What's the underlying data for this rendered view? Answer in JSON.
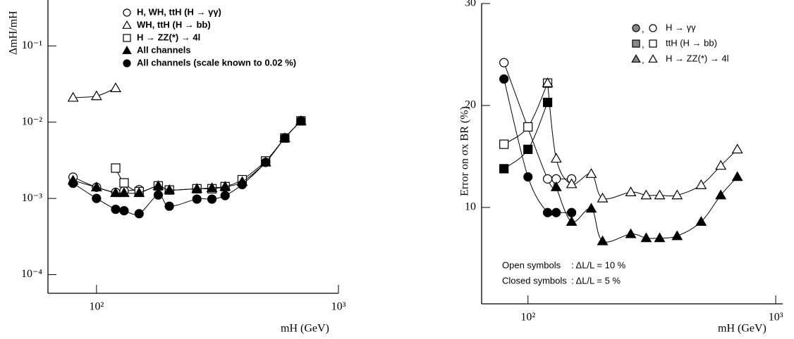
{
  "chart_data": [
    {
      "type": "line",
      "log_x": true,
      "log_y": true,
      "ylabel": "ΔmH/mH",
      "xlabel": "mH (GeV)",
      "xlim": [
        63,
        1000
      ],
      "ylim": [
        5.7e-05,
        0.4
      ],
      "xticks": [
        {
          "value": 100,
          "label": "10²"
        },
        {
          "value": 1000,
          "label": "10³"
        }
      ],
      "yticks": [
        {
          "value": 0.0001,
          "label": "10⁻⁴"
        },
        {
          "value": 0.001,
          "label": "10⁻³"
        },
        {
          "value": 0.01,
          "label": "10⁻²"
        },
        {
          "value": 0.1,
          "label": "10⁻¹"
        }
      ],
      "series": [
        {
          "name": "H, WH, ttH (H → γγ)",
          "marker": "circle",
          "filled": false,
          "color": "#000000",
          "x": [
            80,
            100,
            120,
            130,
            150
          ],
          "values": [
            0.0019,
            0.0014,
            0.0012,
            0.00125,
            0.0013
          ]
        },
        {
          "name": "WH, ttH (H → bb)",
          "marker": "triangle",
          "filled": false,
          "color": "#000000",
          "x": [
            80,
            100,
            120
          ],
          "values": [
            0.021,
            0.022,
            0.028
          ]
        },
        {
          "name": "H → ZZ(*) → 4l",
          "marker": "square",
          "filled": false,
          "color": "#000000",
          "x": [
            120,
            130,
            150,
            180,
            200,
            260,
            300,
            340,
            400,
            500,
            600,
            700
          ],
          "values": [
            0.0025,
            0.0016,
            0.00123,
            0.00146,
            0.00129,
            0.00134,
            0.00134,
            0.00143,
            0.00176,
            0.0031,
            0.0062,
            0.0104
          ]
        },
        {
          "name": "All channels",
          "marker": "triangle",
          "filled": true,
          "color": "#000000",
          "x": [
            80,
            100,
            120,
            130,
            150,
            180,
            200,
            260,
            300,
            340,
            400,
            500,
            600,
            700
          ],
          "values": [
            0.00172,
            0.0014,
            0.00118,
            0.00118,
            0.00118,
            0.00146,
            0.00129,
            0.00134,
            0.00137,
            0.00143,
            0.00165,
            0.00297,
            0.0062,
            0.0104
          ]
        },
        {
          "name": "All channels (scale known to 0.02 %)",
          "marker": "circle",
          "filled": true,
          "color": "#000000",
          "x": [
            80,
            100,
            120,
            130,
            150,
            180,
            200,
            260,
            300,
            340,
            400,
            500,
            600,
            700
          ],
          "values": [
            0.00158,
            0.001,
            0.00072,
            0.00069,
            0.00063,
            0.00111,
            0.00079,
            0.00098,
            0.00098,
            0.00109,
            0.00152,
            0.00297,
            0.0062,
            0.0104
          ]
        }
      ]
    },
    {
      "type": "line",
      "log_x": true,
      "log_y": false,
      "ylabel": "Error on σx BR (%)",
      "xlabel": "mH (GeV)",
      "xlim": [
        65,
        1067
      ],
      "ylim": [
        0.55,
        30
      ],
      "xticks": [
        {
          "value": 100,
          "label": "10²"
        },
        {
          "value": 1000,
          "label": "10³"
        }
      ],
      "yticks": [
        10,
        20,
        30
      ],
      "legend_separator": ",",
      "series": [
        {
          "name": "H → γγ",
          "marker": "circle",
          "color": "#000000",
          "open": {
            "x": [
              80,
              120,
              130,
              150
            ],
            "values": [
              24.2,
              12.8,
              12.8,
              12.8
            ]
          },
          "closed": {
            "x": [
              80,
              100,
              120,
              130,
              150
            ],
            "values": [
              22.6,
              13.0,
              9.5,
              9.5,
              9.5
            ]
          }
        },
        {
          "name": "ttH (H → bb)",
          "marker": "square",
          "color": "#000000",
          "open": {
            "x": [
              80,
              100,
              120
            ],
            "values": [
              16.2,
              17.9,
              22.2
            ]
          },
          "closed": {
            "x": [
              80,
              100,
              120
            ],
            "values": [
              13.8,
              15.7,
              20.3
            ]
          }
        },
        {
          "name": "H → ZZ(*) → 4l",
          "marker": "triangle",
          "color": "#000000",
          "open": {
            "x": [
              120,
              130,
              150,
              180,
              200,
              260,
              300,
              340,
              400,
              500,
              600,
              700
            ],
            "values": [
              22.2,
              14.8,
              12.3,
              13.3,
              10.9,
              11.5,
              11.2,
              11.2,
              11.2,
              12.2,
              14.1,
              15.7
            ]
          },
          "closed": {
            "x": [
              130,
              150,
              180,
              200,
              260,
              300,
              340,
              400,
              500,
              600,
              700
            ],
            "values": [
              12.0,
              8.6,
              9.9,
              6.7,
              7.4,
              7.0,
              7.0,
              7.2,
              8.6,
              11.2,
              13.0
            ]
          }
        }
      ],
      "annotations": [
        {
          "label": "Open symbols",
          "value": ":  ΔL/L = 10 %"
        },
        {
          "label": "Closed symbols",
          "value": ":  ΔL/L = 5 %"
        }
      ]
    }
  ]
}
